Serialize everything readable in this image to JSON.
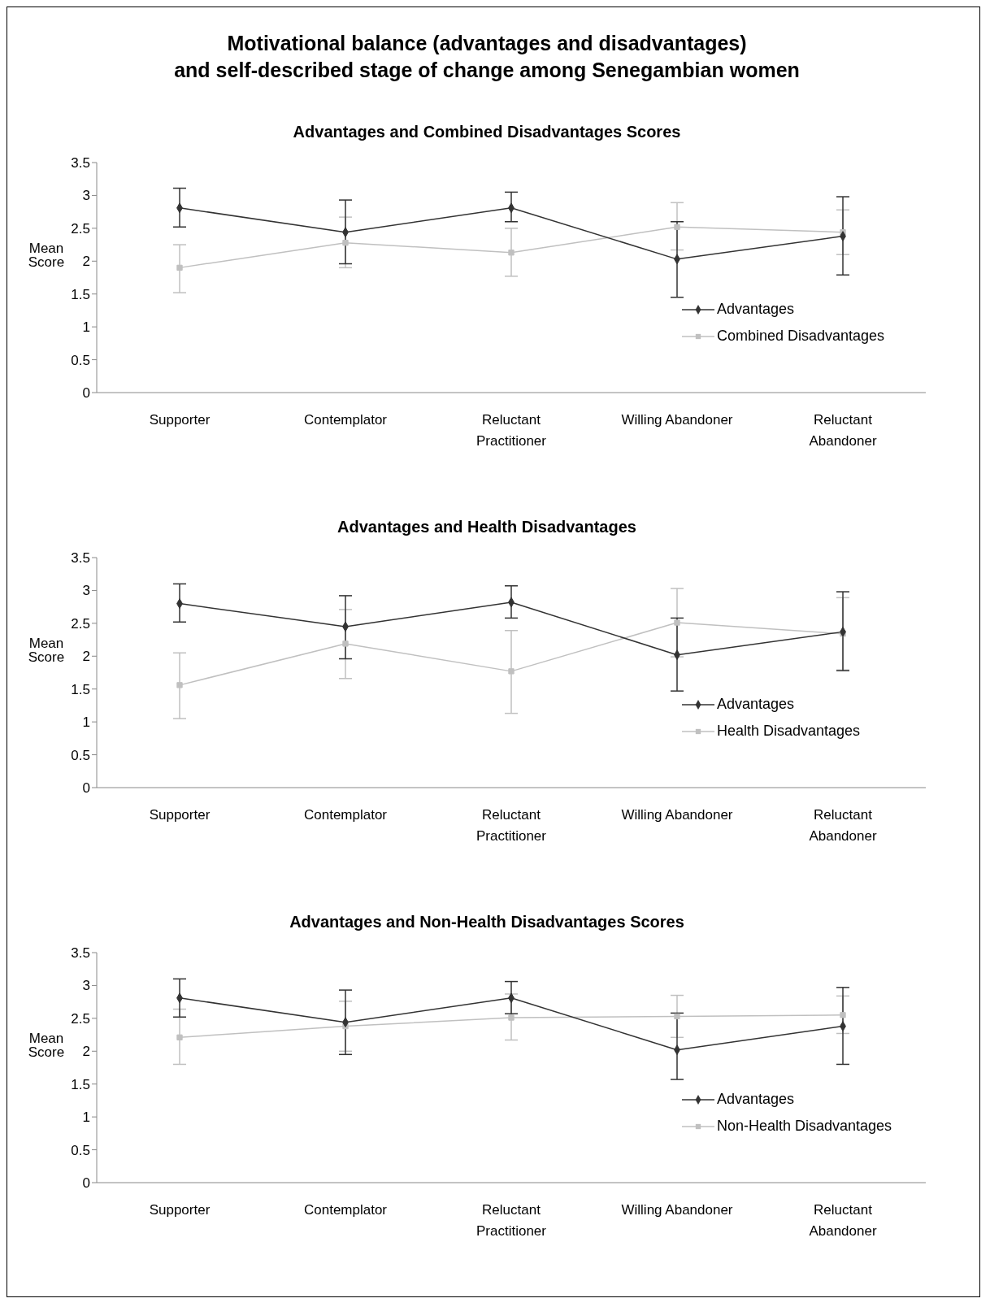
{
  "chart_data": [
    {
      "type": "line",
      "title": "Motivational balance (advantages and disadvantages)\nand self-described stage of change among Senegambian women",
      "subtitle": "Advantages and Combined Disadvantages Scores",
      "ylabel": "Mean Score",
      "categories": [
        "Supporter",
        "Contemplator",
        "Reluctant Practitioner",
        "Willing Abandoner",
        "Reluctant Abandoner"
      ],
      "ylim": [
        0,
        3.5
      ],
      "yticks": [
        0,
        0.5,
        1,
        1.5,
        2,
        2.5,
        3,
        3.5
      ],
      "grid": false,
      "legend": "right",
      "series": [
        {
          "name": "Advantages",
          "color": "#333333",
          "marker": "diamond",
          "values": [
            2.81,
            2.44,
            2.81,
            2.03,
            2.38
          ],
          "errors": [
            [
              2.52,
              3.11
            ],
            [
              1.96,
              2.93
            ],
            [
              2.6,
              3.05
            ],
            [
              1.45,
              2.6
            ],
            [
              1.79,
              2.98
            ]
          ]
        },
        {
          "name": "Combined Disadvantages",
          "color": "#c0c0c0",
          "marker": "square",
          "values": [
            1.9,
            2.28,
            2.13,
            2.52,
            2.44
          ],
          "errors": [
            [
              1.52,
              2.25
            ],
            [
              1.9,
              2.67
            ],
            [
              1.77,
              2.5
            ],
            [
              2.17,
              2.89
            ],
            [
              2.1,
              2.78
            ]
          ]
        }
      ]
    },
    {
      "type": "line",
      "subtitle": "Advantages and Health Disadvantages",
      "ylabel": "Mean Score",
      "categories": [
        "Supporter",
        "Contemplator",
        "Reluctant Practitioner",
        "Willing Abandoner",
        "Reluctant Abandoner"
      ],
      "ylim": [
        0,
        3.5
      ],
      "yticks": [
        0,
        0.5,
        1,
        1.5,
        2,
        2.5,
        3,
        3.5
      ],
      "grid": false,
      "legend": "right",
      "series": [
        {
          "name": "Advantages",
          "color": "#333333",
          "marker": "diamond",
          "values": [
            2.8,
            2.45,
            2.82,
            2.02,
            2.37
          ],
          "errors": [
            [
              2.52,
              3.1
            ],
            [
              1.96,
              2.92
            ],
            [
              2.58,
              3.07
            ],
            [
              1.47,
              2.58
            ],
            [
              1.78,
              2.98
            ]
          ]
        },
        {
          "name": "Health Disadvantages",
          "color": "#c0c0c0",
          "marker": "square",
          "values": [
            1.56,
            2.19,
            1.77,
            2.51,
            2.34
          ],
          "errors": [
            [
              1.05,
              2.05
            ],
            [
              1.66,
              2.71
            ],
            [
              1.13,
              2.39
            ],
            [
              1.99,
              3.03
            ],
            [
              1.79,
              2.89
            ]
          ]
        }
      ]
    },
    {
      "type": "line",
      "subtitle": "Advantages and Non-Health Disadvantages Scores",
      "ylabel": "Mean Score",
      "categories": [
        "Supporter",
        "Contemplator",
        "Reluctant Practitioner",
        "Willing Abandoner",
        "Reluctant Abandoner"
      ],
      "ylim": [
        0,
        3.5
      ],
      "yticks": [
        0,
        0.5,
        1,
        1.5,
        2,
        2.5,
        3,
        3.5
      ],
      "grid": false,
      "legend": "right",
      "series": [
        {
          "name": "Advantages",
          "color": "#333333",
          "marker": "diamond",
          "values": [
            2.81,
            2.44,
            2.81,
            2.02,
            2.38
          ],
          "errors": [
            [
              2.52,
              3.1
            ],
            [
              1.95,
              2.93
            ],
            [
              2.57,
              3.06
            ],
            [
              1.57,
              2.58
            ],
            [
              1.8,
              2.97
            ]
          ]
        },
        {
          "name": "Non-Health Disadvantages",
          "color": "#c0c0c0",
          "marker": "square",
          "values": [
            2.21,
            2.38,
            2.51,
            2.53,
            2.55
          ],
          "errors": [
            [
              1.8,
              2.64
            ],
            [
              2.0,
              2.76
            ],
            [
              2.17,
              2.87
            ],
            [
              2.21,
              2.85
            ],
            [
              2.27,
              2.84
            ]
          ]
        }
      ]
    }
  ]
}
